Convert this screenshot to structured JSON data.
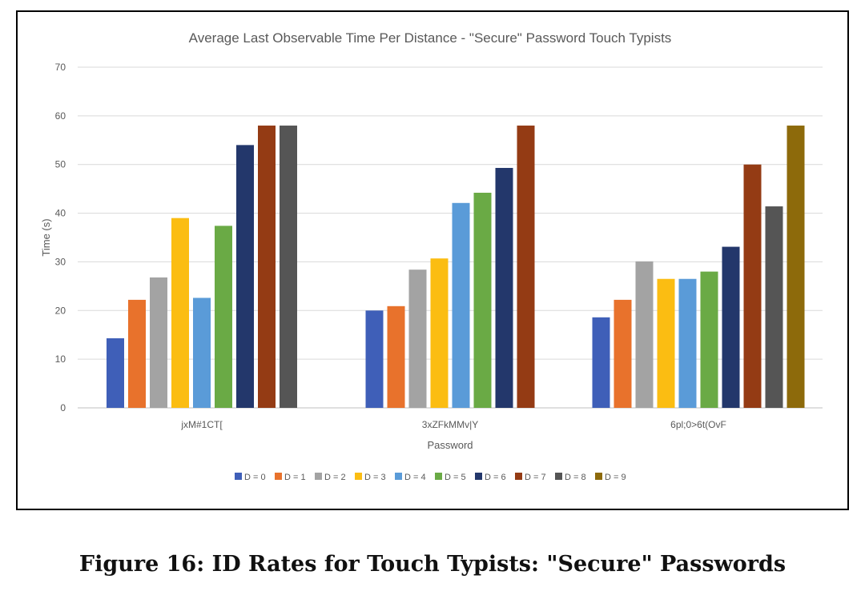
{
  "chart_data": {
    "type": "bar",
    "title": "Average Last Observable Time Per Distance - \"Secure\" Password Touch Typists",
    "xlabel": "Password",
    "ylabel": "Time (s)",
    "ylim": [
      0,
      70
    ],
    "yticks": [
      0,
      10,
      20,
      30,
      40,
      50,
      60,
      70
    ],
    "grid": true,
    "legend_position": "bottom",
    "categories": [
      "jxM#1CT[",
      "3xZFkMMv|Y",
      "6pl;0>6t(OvF"
    ],
    "series": [
      {
        "name": "D = 0",
        "color": "#3f5fb8",
        "values": [
          14.3,
          20.0,
          18.6
        ]
      },
      {
        "name": "D = 1",
        "color": "#e8722c",
        "values": [
          22.2,
          20.9,
          22.2
        ]
      },
      {
        "name": "D = 2",
        "color": "#a3a3a3",
        "values": [
          26.8,
          28.4,
          30.1
        ]
      },
      {
        "name": "D = 3",
        "color": "#fbbd12",
        "values": [
          39.0,
          30.7,
          26.5
        ]
      },
      {
        "name": "D = 4",
        "color": "#5a9bd8",
        "values": [
          22.6,
          42.1,
          26.5
        ]
      },
      {
        "name": "D = 5",
        "color": "#6aaa45",
        "values": [
          37.4,
          44.2,
          28.0
        ]
      },
      {
        "name": "D = 6",
        "color": "#23376b",
        "values": [
          54.0,
          49.3,
          33.1
        ]
      },
      {
        "name": "D = 7",
        "color": "#943b14",
        "values": [
          58.0,
          58.0,
          50.0
        ]
      },
      {
        "name": "D = 8",
        "color": "#555555",
        "values": [
          58.0,
          null,
          41.4
        ]
      },
      {
        "name": "D = 9",
        "color": "#8d6a0b",
        "values": [
          null,
          null,
          58.0
        ]
      }
    ]
  },
  "caption": "Figure 16: ID Rates for Touch Typists: \"Secure\" Passwords"
}
